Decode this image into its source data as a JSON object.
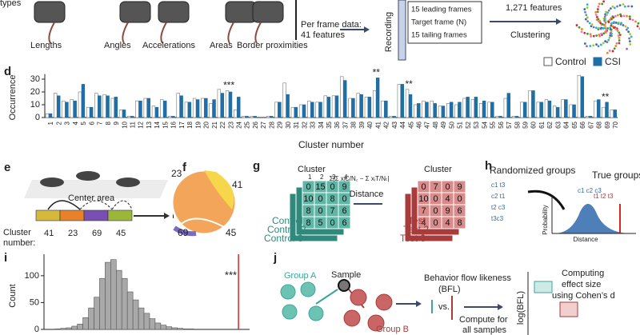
{
  "panel_labels": [
    "d",
    "e",
    "f",
    "g",
    "h",
    "i",
    "j"
  ],
  "header": {
    "cut_text": "types",
    "features": [
      "Lengths",
      "Angles",
      "Accelerations",
      "Areas",
      "Border proximities"
    ],
    "per_frame": [
      "Per frame data:",
      "41 features"
    ],
    "recording": "Recording",
    "frames": [
      "15 leading frames",
      "Target frame (N)",
      "15 tailing frames"
    ],
    "total": "1,271 features",
    "clustering": "Clustering"
  },
  "chart_data": [
    {
      "type": "bar",
      "y_label": "Occurrence",
      "x_label": "Cluster number",
      "categories": [
        "1",
        "2",
        "3",
        "4",
        "5",
        "6",
        "7",
        "8",
        "9",
        "10",
        "11",
        "12",
        "13",
        "14",
        "15",
        "16",
        "17",
        "18",
        "19",
        "20",
        "21",
        "22",
        "23",
        "24",
        "25",
        "26",
        "27",
        "28",
        "29",
        "30",
        "31",
        "32",
        "33",
        "34",
        "35",
        "36",
        "37",
        "38",
        "39",
        "40",
        "41",
        "42",
        "43",
        "44",
        "45",
        "46",
        "47",
        "48",
        "49",
        "50",
        "51",
        "52",
        "53",
        "54",
        "55",
        "56",
        "57",
        "58",
        "59",
        "60",
        "61",
        "62",
        "63",
        "64",
        "65",
        "66",
        "67",
        "68",
        "69",
        "70"
      ],
      "series": [
        {
          "name": "Control",
          "color": "#ffffff",
          "values": [
            3,
            19,
            13,
            14,
            20,
            8,
            19,
            18,
            15,
            6,
            1,
            13,
            15,
            9,
            14,
            1,
            19,
            12,
            15,
            15,
            11,
            22,
            21,
            6,
            1,
            1,
            0,
            1,
            12,
            27,
            8,
            10,
            13,
            12,
            17,
            17,
            32,
            15,
            19,
            16,
            21,
            13,
            1,
            26,
            22,
            10,
            13,
            13,
            9,
            11,
            10,
            15,
            14,
            11,
            12,
            1,
            15,
            1,
            12,
            21,
            12,
            14,
            9,
            14,
            10,
            33,
            1,
            13,
            8,
            6
          ]
        },
        {
          "name": "CSI",
          "color": "#1f6ea5",
          "values": [
            3,
            17,
            12,
            13,
            26,
            8,
            17,
            17,
            16,
            6,
            1,
            13,
            15,
            8,
            13,
            1,
            17,
            12,
            14,
            15,
            14,
            19,
            20,
            16,
            1,
            1,
            0,
            1,
            12,
            18,
            8,
            10,
            12,
            12,
            16,
            17,
            29,
            15,
            18,
            16,
            31,
            13,
            1,
            26,
            18,
            11,
            12,
            11,
            9,
            12,
            12,
            16,
            16,
            13,
            12,
            1,
            19,
            1,
            12,
            21,
            12,
            13,
            8,
            14,
            10,
            32,
            1,
            14,
            12,
            6
          ]
        }
      ],
      "annotations": [
        {
          "text": "***",
          "category": "23"
        },
        {
          "text": "**",
          "category": "41"
        },
        {
          "text": "**",
          "category": "45"
        },
        {
          "text": "**",
          "category": "69"
        }
      ],
      "ylim": [
        0,
        34
      ],
      "yticks": [
        0,
        10,
        20,
        30
      ],
      "legend": "top-right"
    },
    {
      "type": "histogram",
      "y_label": "Count",
      "bins": [
        0,
        1,
        2,
        3,
        4,
        5,
        6,
        7,
        8,
        9,
        10,
        11,
        12,
        13,
        14,
        15,
        16,
        17,
        18,
        19,
        20,
        21,
        22,
        23,
        24,
        25
      ],
      "values": [
        1,
        2,
        3,
        6,
        10,
        22,
        40,
        60,
        95,
        125,
        130,
        110,
        95,
        70,
        55,
        40,
        30,
        20,
        12,
        8,
        5,
        3,
        2,
        1,
        1
      ],
      "color": "#a9a9a9",
      "xlim": [
        -2,
        35
      ],
      "ylim": [
        0,
        140
      ],
      "yticks": [
        0,
        50,
        100
      ],
      "reference_line": {
        "x": 33,
        "color": "#d62728",
        "label": "***"
      }
    }
  ],
  "panel_e": {
    "area": "Center area",
    "frames": "Frames",
    "cluster_label": [
      "Cluster",
      "number:"
    ],
    "clusters": [
      "41",
      "23",
      "69",
      "45"
    ]
  },
  "panel_f": {
    "labels": [
      "23",
      "41",
      "69",
      "45"
    ]
  },
  "panel_g": {
    "cluster": "Cluster",
    "cols": [
      "1",
      "2",
      "3",
      "4"
    ],
    "control_matrix": [
      [
        "0",
        "15",
        "0",
        "9"
      ],
      [
        "10",
        "0",
        "8",
        "0"
      ],
      [
        "8",
        "0",
        "7",
        "6"
      ],
      [
        "8",
        "5",
        "0",
        "6"
      ]
    ],
    "controls": [
      "Control",
      "Control 2",
      "Control 3"
    ],
    "formula": "Σ|Σ xᵢC/N꜀ − Σ xᵢT/Nₜ|",
    "distance": "Distance",
    "test_matrix": [
      [
        "0",
        "7",
        "0",
        "9"
      ],
      [
        "10",
        "0",
        "4",
        "0"
      ],
      [
        "7",
        "0",
        "9",
        "6"
      ],
      [
        "4",
        "0",
        "4",
        "8"
      ]
    ],
    "tests": [
      "Test",
      "Test 2",
      "Test 3"
    ]
  },
  "panel_h": {
    "randomized": "Randomized groups",
    "true": "True groups",
    "random_labels": [
      "c1 t3",
      "c2 t1",
      "t2 c3",
      "t3c3"
    ],
    "true_labels": [
      "c1 c2 c3",
      "t1 t2 t3"
    ],
    "y_label": "Probability",
    "x_label": "Distance"
  },
  "panel_j": {
    "group_a": "Group A",
    "sample": "Sample",
    "group_b": "Group B",
    "bfl": [
      "Behavior flow likeness",
      "(BFL)"
    ],
    "vs": "vs.",
    "compute": [
      "Compute for",
      "all samples"
    ],
    "effect": [
      "Computing",
      "effect size",
      "using Cohen’s d"
    ],
    "y_label": "log(BFL)"
  }
}
